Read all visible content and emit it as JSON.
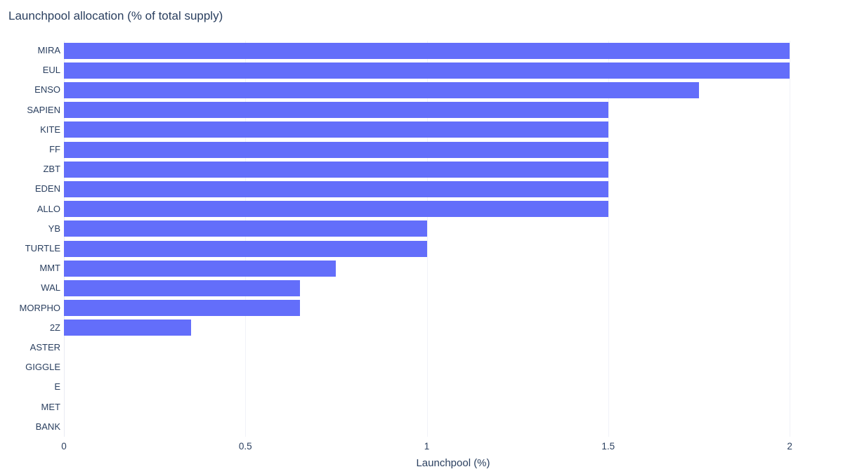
{
  "chart_data": {
    "type": "bar",
    "orientation": "horizontal",
    "title": "Launchpool allocation (% of total supply)",
    "xlabel": "Launchpool (%)",
    "ylabel": "",
    "categories": [
      "MIRA",
      "EUL",
      "ENSO",
      "SAPIEN",
      "KITE",
      "FF",
      "ZBT",
      "EDEN",
      "ALLO",
      "YB",
      "TURTLE",
      "MMT",
      "WAL",
      "MORPHO",
      "2Z",
      "ASTER",
      "GIGGLE",
      "E",
      "MET",
      "BANK"
    ],
    "values": [
      2,
      2,
      1.75,
      1.5,
      1.5,
      1.5,
      1.5,
      1.5,
      1.5,
      1,
      1,
      0.75,
      0.65,
      0.65,
      0.35,
      0,
      0,
      0,
      0,
      0
    ],
    "xlim": [
      0,
      2.145
    ],
    "xticks": [
      0,
      0.5,
      1,
      1.5,
      2
    ],
    "xtick_labels": [
      "0",
      "0.5",
      "1",
      "1.5",
      "2"
    ],
    "grid": true,
    "legend": "none",
    "bar_color": "#636efa",
    "text_color": "#2a3f5f",
    "grid_color": "#f0f2f8",
    "background_color": "#ffffff"
  }
}
